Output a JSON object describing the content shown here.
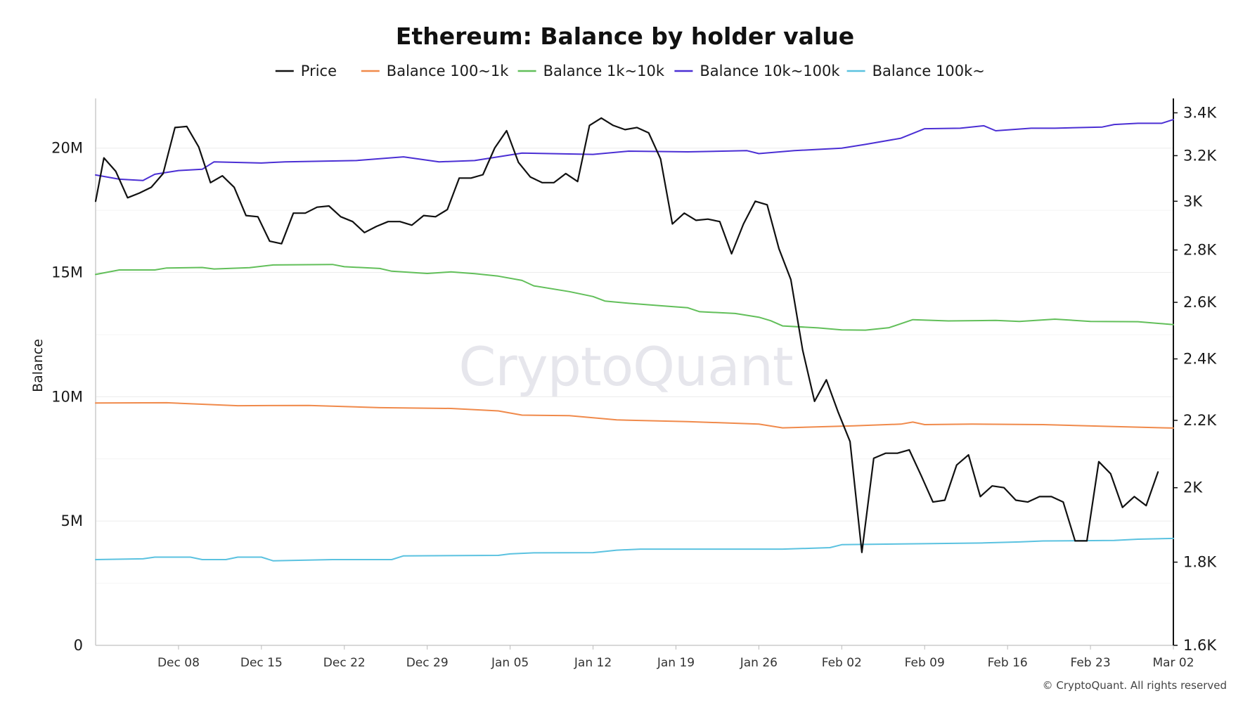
{
  "chart_data": {
    "type": "line",
    "title": "Ethereum: Balance by holder value",
    "watermark": "CryptoQuant",
    "copyright": "© CryptoQuant. All rights reserved",
    "y_left_label": "Balance",
    "y_left_range": [
      0,
      22000000
    ],
    "y_left_ticks": [
      {
        "value": 0,
        "label": "0"
      },
      {
        "value": 5000000,
        "label": "5M"
      },
      {
        "value": 10000000,
        "label": "10M"
      },
      {
        "value": 15000000,
        "label": "15M"
      },
      {
        "value": 20000000,
        "label": "20M"
      }
    ],
    "y_right_scale": "log",
    "y_right_range": [
      1600,
      3470
    ],
    "y_right_ticks": [
      {
        "value": 1600,
        "label": "1.6K"
      },
      {
        "value": 1800,
        "label": "1.8K"
      },
      {
        "value": 2000,
        "label": "2K"
      },
      {
        "value": 2200,
        "label": "2.2K"
      },
      {
        "value": 2400,
        "label": "2.4K"
      },
      {
        "value": 2600,
        "label": "2.6K"
      },
      {
        "value": 2800,
        "label": "2.8K"
      },
      {
        "value": 3000,
        "label": "3K"
      },
      {
        "value": 3200,
        "label": "3.2K"
      },
      {
        "value": 3400,
        "label": "3.4K"
      }
    ],
    "x_range": [
      "Dec 01",
      "Mar 02"
    ],
    "x_ticks": [
      {
        "day": 7,
        "label": "Dec 08"
      },
      {
        "day": 14,
        "label": "Dec 15"
      },
      {
        "day": 21,
        "label": "Dec 22"
      },
      {
        "day": 28,
        "label": "Dec 29"
      },
      {
        "day": 35,
        "label": "Jan 05"
      },
      {
        "day": 42,
        "label": "Jan 12"
      },
      {
        "day": 49,
        "label": "Jan 19"
      },
      {
        "day": 56,
        "label": "Jan 26"
      },
      {
        "day": 63,
        "label": "Feb 02"
      },
      {
        "day": 70,
        "label": "Feb 09"
      },
      {
        "day": 77,
        "label": "Feb 16"
      },
      {
        "day": 84,
        "label": "Feb 23"
      },
      {
        "day": 91,
        "label": "Mar 02"
      }
    ],
    "grid": "horizontal",
    "legend_position": "top-center",
    "series": [
      {
        "name": "Price",
        "axis": "right",
        "color": "#111111",
        "points": [
          [
            0,
            3000
          ],
          [
            0.7,
            3190
          ],
          [
            1.7,
            3130
          ],
          [
            2.7,
            3015
          ],
          [
            3.7,
            3035
          ],
          [
            4.7,
            3060
          ],
          [
            5.7,
            3120
          ],
          [
            6.7,
            3330
          ],
          [
            7.7,
            3335
          ],
          [
            8.7,
            3240
          ],
          [
            9.7,
            3080
          ],
          [
            10.7,
            3110
          ],
          [
            11.7,
            3060
          ],
          [
            12.7,
            2940
          ],
          [
            13.7,
            2935
          ],
          [
            14.7,
            2835
          ],
          [
            15.7,
            2825
          ],
          [
            16.7,
            2950
          ],
          [
            17.7,
            2950
          ],
          [
            18.7,
            2975
          ],
          [
            19.7,
            2980
          ],
          [
            20.7,
            2935
          ],
          [
            21.7,
            2915
          ],
          [
            22.7,
            2870
          ],
          [
            23.7,
            2895
          ],
          [
            24.7,
            2915
          ],
          [
            25.7,
            2915
          ],
          [
            26.7,
            2900
          ],
          [
            27.7,
            2940
          ],
          [
            28.7,
            2935
          ],
          [
            29.7,
            2965
          ],
          [
            30.7,
            3100
          ],
          [
            31.7,
            3100
          ],
          [
            32.7,
            3115
          ],
          [
            33.7,
            3235
          ],
          [
            34.7,
            3315
          ],
          [
            35.7,
            3170
          ],
          [
            36.7,
            3105
          ],
          [
            37.7,
            3080
          ],
          [
            38.7,
            3080
          ],
          [
            39.7,
            3120
          ],
          [
            40.7,
            3085
          ],
          [
            41.7,
            3340
          ],
          [
            42.7,
            3375
          ],
          [
            43.7,
            3340
          ],
          [
            44.7,
            3320
          ],
          [
            45.7,
            3330
          ],
          [
            46.7,
            3305
          ],
          [
            47.7,
            3185
          ],
          [
            48.7,
            2905
          ],
          [
            49.7,
            2950
          ],
          [
            50.7,
            2920
          ],
          [
            51.7,
            2925
          ],
          [
            52.7,
            2915
          ],
          [
            53.7,
            2785
          ],
          [
            54.7,
            2905
          ],
          [
            55.7,
            3000
          ],
          [
            56.7,
            2985
          ],
          [
            57.7,
            2805
          ],
          [
            58.7,
            2685
          ],
          [
            59.7,
            2430
          ],
          [
            60.7,
            2260
          ],
          [
            61.7,
            2330
          ],
          [
            62.7,
            2225
          ],
          [
            63.7,
            2135
          ],
          [
            64.7,
            1825
          ],
          [
            65.7,
            2085
          ],
          [
            66.7,
            2100
          ],
          [
            67.7,
            2100
          ],
          [
            68.7,
            2110
          ],
          [
            69.7,
            2035
          ],
          [
            70.7,
            1960
          ],
          [
            71.7,
            1965
          ],
          [
            72.7,
            2065
          ],
          [
            73.7,
            2095
          ],
          [
            74.7,
            1975
          ],
          [
            75.7,
            2005
          ],
          [
            76.7,
            2000
          ],
          [
            77.7,
            1965
          ],
          [
            78.7,
            1960
          ],
          [
            79.7,
            1975
          ],
          [
            80.7,
            1975
          ],
          [
            81.7,
            1960
          ],
          [
            82.7,
            1855
          ],
          [
            83.7,
            1855
          ],
          [
            84.7,
            2075
          ],
          [
            85.7,
            2040
          ],
          [
            86.7,
            1945
          ],
          [
            87.7,
            1975
          ],
          [
            88.7,
            1950
          ],
          [
            89.7,
            2045
          ]
        ]
      },
      {
        "name": "Balance 100~1k",
        "axis": "left",
        "color": "#f08a4b",
        "points": [
          [
            0,
            9750000
          ],
          [
            6,
            9760000
          ],
          [
            12,
            9640000
          ],
          [
            18,
            9650000
          ],
          [
            24,
            9560000
          ],
          [
            30,
            9530000
          ],
          [
            34,
            9430000
          ],
          [
            36,
            9260000
          ],
          [
            40,
            9240000
          ],
          [
            44,
            9070000
          ],
          [
            50,
            9000000
          ],
          [
            56,
            8900000
          ],
          [
            58,
            8750000
          ],
          [
            64,
            8830000
          ],
          [
            68,
            8900000
          ],
          [
            69,
            8980000
          ],
          [
            70,
            8880000
          ],
          [
            74,
            8900000
          ],
          [
            80,
            8880000
          ],
          [
            86,
            8800000
          ],
          [
            91,
            8740000
          ]
        ]
      },
      {
        "name": "Balance 1k~10k",
        "axis": "left",
        "color": "#62bf5a",
        "points": [
          [
            0,
            14920000
          ],
          [
            2,
            15100000
          ],
          [
            5,
            15100000
          ],
          [
            6,
            15180000
          ],
          [
            9,
            15200000
          ],
          [
            10,
            15140000
          ],
          [
            13,
            15190000
          ],
          [
            15,
            15300000
          ],
          [
            20,
            15320000
          ],
          [
            21,
            15230000
          ],
          [
            24,
            15160000
          ],
          [
            25,
            15050000
          ],
          [
            28,
            14960000
          ],
          [
            30,
            15020000
          ],
          [
            32,
            14950000
          ],
          [
            34,
            14850000
          ],
          [
            36,
            14680000
          ],
          [
            37,
            14460000
          ],
          [
            40,
            14230000
          ],
          [
            42,
            14030000
          ],
          [
            43,
            13850000
          ],
          [
            45,
            13760000
          ],
          [
            48,
            13650000
          ],
          [
            50,
            13580000
          ],
          [
            51,
            13420000
          ],
          [
            54,
            13350000
          ],
          [
            56,
            13200000
          ],
          [
            57,
            13060000
          ],
          [
            58,
            12850000
          ],
          [
            61,
            12770000
          ],
          [
            63,
            12690000
          ],
          [
            65,
            12680000
          ],
          [
            67,
            12780000
          ],
          [
            69,
            13100000
          ],
          [
            72,
            13050000
          ],
          [
            76,
            13070000
          ],
          [
            78,
            13030000
          ],
          [
            81,
            13120000
          ],
          [
            84,
            13030000
          ],
          [
            88,
            13020000
          ],
          [
            91,
            12900000
          ]
        ]
      },
      {
        "name": "Balance 10k~100k",
        "axis": "left",
        "color": "#4b2fd4",
        "points": [
          [
            0,
            18920000
          ],
          [
            2,
            18750000
          ],
          [
            4,
            18700000
          ],
          [
            5,
            18950000
          ],
          [
            7,
            19100000
          ],
          [
            9,
            19150000
          ],
          [
            10,
            19450000
          ],
          [
            14,
            19400000
          ],
          [
            16,
            19450000
          ],
          [
            22,
            19500000
          ],
          [
            26,
            19650000
          ],
          [
            29,
            19450000
          ],
          [
            32,
            19500000
          ],
          [
            36,
            19800000
          ],
          [
            42,
            19750000
          ],
          [
            45,
            19880000
          ],
          [
            50,
            19850000
          ],
          [
            55,
            19900000
          ],
          [
            56,
            19780000
          ],
          [
            59,
            19900000
          ],
          [
            63,
            20000000
          ],
          [
            65,
            20150000
          ],
          [
            68,
            20400000
          ],
          [
            70,
            20780000
          ],
          [
            73,
            20800000
          ],
          [
            75,
            20900000
          ],
          [
            76,
            20700000
          ],
          [
            79,
            20800000
          ],
          [
            81,
            20800000
          ],
          [
            85,
            20850000
          ],
          [
            86,
            20950000
          ],
          [
            88,
            21000000
          ],
          [
            90,
            21000000
          ],
          [
            91,
            21150000
          ]
        ]
      },
      {
        "name": "Balance 100k~",
        "axis": "left",
        "color": "#5bc2e0",
        "points": [
          [
            0,
            3450000
          ],
          [
            4,
            3480000
          ],
          [
            5,
            3550000
          ],
          [
            8,
            3550000
          ],
          [
            9,
            3450000
          ],
          [
            11,
            3450000
          ],
          [
            12,
            3550000
          ],
          [
            14,
            3550000
          ],
          [
            15,
            3400000
          ],
          [
            20,
            3450000
          ],
          [
            25,
            3450000
          ],
          [
            26,
            3600000
          ],
          [
            34,
            3620000
          ],
          [
            35,
            3680000
          ],
          [
            37,
            3720000
          ],
          [
            42,
            3730000
          ],
          [
            44,
            3830000
          ],
          [
            46,
            3870000
          ],
          [
            50,
            3870000
          ],
          [
            55,
            3870000
          ],
          [
            58,
            3870000
          ],
          [
            60,
            3900000
          ],
          [
            62,
            3930000
          ],
          [
            63,
            4050000
          ],
          [
            70,
            4090000
          ],
          [
            75,
            4120000
          ],
          [
            78,
            4160000
          ],
          [
            80,
            4200000
          ],
          [
            86,
            4220000
          ],
          [
            88,
            4270000
          ],
          [
            91,
            4300000
          ]
        ]
      }
    ]
  }
}
